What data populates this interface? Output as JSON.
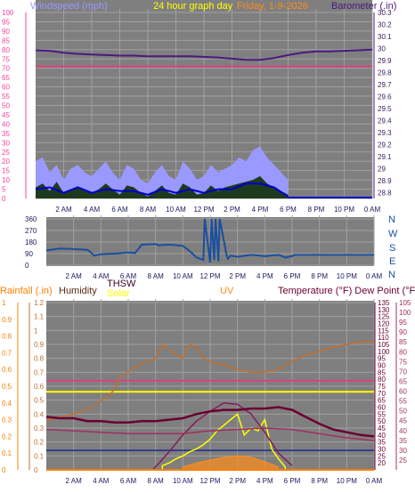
{
  "header": {
    "windspeed_label": "Windspeed (mph)",
    "graph_day_label": "24 hour graph day",
    "date_label": "Friday, 1-9-2026",
    "barometer_label": "Barometer (.in)"
  },
  "mid": {
    "compass": [
      "N",
      "W",
      "S",
      "E",
      "N"
    ]
  },
  "bottom_header": {
    "rainfall_label": "Rainfall (.in)",
    "humidity_label": "Humidity",
    "thsw_label": "THSW",
    "solar_label": "Solar",
    "uv_label": "UV",
    "temperature_label": "Temperature (°F) Dew Point (°F)"
  },
  "colors": {
    "panel_bg": "#7f7f7f",
    "grid": "#a0a0a0",
    "windspeed": "#9999ff",
    "wind_avg": "#0000cc",
    "gust_fill": "#1e3a1e",
    "barometer": "#4b1a7f",
    "pink_line": "#e0407e",
    "direction": "#1a4f9f",
    "humidity": "#c07030",
    "temperature": "#6a0030",
    "dewpoint": "#a03060",
    "thsw": "#7f1f5f",
    "solar": "#ffff00",
    "uv": "#ff8c1a",
    "rain": "#ff7f00"
  },
  "chart_data": [
    {
      "type": "line",
      "title": "24 hour graph day",
      "x_ticks": [
        "2 AM",
        "4 AM",
        "6 AM",
        "8 AM",
        "10 AM",
        "12 PM",
        "2 PM",
        "4 PM",
        "6 PM",
        "8 PM",
        "10 PM",
        "0 AM"
      ],
      "left_axis": {
        "label": "Windspeed (mph)",
        "range": [
          0,
          100
        ],
        "ticks": [
          "100",
          "95",
          "90",
          "85",
          "80",
          "75",
          "70",
          "65",
          "60",
          "55",
          "50",
          "45",
          "40",
          "35",
          "30",
          "25",
          "20",
          "15",
          "10",
          "5",
          "0"
        ]
      },
      "right_axis": {
        "label": "Barometer (.in)",
        "range": [
          28.75,
          30.3
        ],
        "ticks": [
          "30.3",
          "30.2",
          "30.1",
          "30",
          "29.9",
          "29.8",
          "29.7",
          "29.6",
          "29.5",
          "29.4",
          "29.3",
          "29.2",
          "29.1",
          "29",
          "28.9",
          "28.8"
        ]
      },
      "series": [
        {
          "name": "Barometer",
          "axis": "right",
          "x": [
            0,
            1,
            2,
            3,
            4,
            5,
            6,
            7,
            8,
            9,
            10,
            11,
            12,
            13,
            14,
            15,
            16,
            17,
            18,
            19,
            20,
            21,
            22,
            23,
            24
          ],
          "y": [
            29.985,
            29.98,
            29.965,
            29.955,
            29.95,
            29.945,
            29.94,
            29.94,
            29.935,
            29.935,
            29.935,
            29.935,
            29.93,
            29.925,
            29.915,
            29.905,
            29.905,
            29.92,
            29.945,
            29.965,
            29.975,
            29.975,
            29.98,
            29.985,
            29.99
          ]
        },
        {
          "name": "Windspeed",
          "axis": "left",
          "x": [
            0,
            0.5,
            1,
            1.5,
            2,
            2.5,
            3,
            3.5,
            4,
            4.5,
            5,
            5.5,
            6,
            6.5,
            7,
            7.5,
            8,
            8.5,
            9,
            9.5,
            10,
            10.5,
            11,
            11.5,
            12,
            12.5,
            13,
            13.5,
            14,
            14.5,
            15,
            15.5,
            16,
            16.5,
            17,
            17.5,
            18
          ],
          "y": [
            20,
            22,
            14,
            18,
            10,
            16,
            18,
            14,
            12,
            16,
            20,
            14,
            10,
            18,
            16,
            10,
            8,
            14,
            18,
            12,
            10,
            20,
            16,
            10,
            12,
            18,
            14,
            16,
            18,
            22,
            20,
            26,
            28,
            22,
            18,
            14,
            10
          ]
        },
        {
          "name": "Wind gust",
          "axis": "left",
          "x": [
            0,
            0.5,
            1,
            1.5,
            2,
            2.5,
            3,
            3.5,
            4,
            4.5,
            5,
            5.5,
            6,
            6.5,
            7,
            7.5,
            8,
            8.5,
            9,
            9.5,
            10,
            10.5,
            11,
            11.5,
            12,
            12.5,
            13,
            13.5,
            14,
            14.5,
            15,
            15.5,
            16,
            16.5,
            17,
            17.5,
            18
          ],
          "y": [
            6,
            8,
            4,
            9,
            3,
            5,
            6,
            4,
            3,
            5,
            8,
            5,
            2,
            7,
            6,
            3,
            1,
            4,
            7,
            3,
            2,
            8,
            6,
            2,
            3,
            7,
            4,
            6,
            7,
            8,
            9,
            10,
            12,
            8,
            6,
            4,
            2
          ]
        },
        {
          "name": "Wind average",
          "axis": "left",
          "x": [
            0,
            1,
            2,
            3,
            4,
            5,
            6,
            7,
            8,
            9,
            10,
            11,
            12,
            13,
            14,
            15,
            16,
            17,
            18
          ],
          "y": [
            5,
            6,
            3,
            6,
            3,
            5,
            4,
            4,
            2,
            5,
            3,
            5,
            3,
            5,
            5,
            8,
            8,
            6,
            1
          ]
        }
      ],
      "reference_line": {
        "axis": "left",
        "value": 71
      }
    },
    {
      "type": "line",
      "title": "",
      "x_ticks": [
        "2 AM",
        "4 AM",
        "6 AM",
        "8 AM",
        "10 AM",
        "12 PM",
        "2 PM",
        "4 PM",
        "6 PM",
        "8 PM",
        "10 PM",
        "0 AM"
      ],
      "left_axis": {
        "range": [
          0,
          360
        ],
        "ticks": [
          "360",
          "270",
          "180",
          "90",
          "0"
        ]
      },
      "right_axis": {
        "ticks": [
          "N",
          "W",
          "S",
          "E",
          "N"
        ]
      },
      "series": [
        {
          "name": "Wind direction",
          "x": [
            0,
            1,
            2,
            3,
            3.2,
            3.5,
            4,
            5,
            6,
            6.5,
            7,
            8,
            8.2,
            9,
            10,
            10.5,
            11,
            11.5,
            11.6,
            12,
            12.1,
            12.3,
            12.4,
            12.6,
            12.7,
            13.2,
            13.3,
            13.5,
            14,
            15,
            16,
            17,
            17.5,
            18,
            18.2,
            24
          ],
          "y": [
            115,
            130,
            125,
            120,
            105,
            75,
            85,
            90,
            100,
            95,
            160,
            165,
            155,
            160,
            150,
            110,
            60,
            40,
            360,
            20,
            360,
            40,
            360,
            30,
            360,
            80,
            50,
            75,
            65,
            80,
            70,
            80,
            60,
            70,
            80,
            80
          ]
        }
      ]
    },
    {
      "type": "line",
      "title": "",
      "x_ticks": [
        "2 AM",
        "4 AM",
        "6 AM",
        "8 AM",
        "10 AM",
        "12 PM",
        "2 PM",
        "4 PM",
        "6 PM",
        "8 PM",
        "10 PM",
        "0 AM"
      ],
      "rain_axis": {
        "label": "Rainfall (.in)",
        "range": [
          0,
          1
        ],
        "ticks": [
          "1",
          "0.9",
          "0.8",
          "0.7",
          "0.6",
          "0.5",
          "0.4",
          "0.3",
          "0.2",
          "0.1",
          "0"
        ]
      },
      "uv_axis": {
        "label": "UV",
        "range": [
          0,
          12
        ],
        "ticks": [
          "12",
          "11",
          "10",
          "9",
          "8",
          "7",
          "6",
          "5",
          "4",
          "3",
          "2",
          "1",
          "0"
        ]
      },
      "humidity_axis": {
        "label": "Humidity",
        "range": [
          0,
          1.2
        ],
        "ticks": [
          "1.2",
          "1.1",
          "1",
          "0.9",
          "0.8",
          "0.7",
          "0.6",
          "0.5",
          "0.4",
          "0.3",
          "0.2",
          "0.1",
          "0"
        ]
      },
      "temperature_axis": {
        "label": "Temperature (°F)",
        "range": [
          15,
          135
        ],
        "ticks": [
          "135",
          "130",
          "125",
          "120",
          "115",
          "110",
          "105",
          "100",
          "95",
          "90",
          "85",
          "80",
          "75",
          "70",
          "65",
          "60",
          "55",
          "50",
          "45",
          "40",
          "35",
          "30",
          "25",
          "20"
        ]
      },
      "dewpoint_axis": {
        "label": "Dew Point (°F)",
        "range": [
          20,
          105
        ],
        "ticks": [
          "105",
          "100",
          "95",
          "90",
          "85",
          "80",
          "75",
          "70",
          "65",
          "60",
          "55",
          "50",
          "45",
          "40",
          "35",
          "30",
          "25"
        ]
      },
      "series": [
        {
          "name": "Humidity",
          "axis": "humidity",
          "x": [
            0,
            1,
            2,
            3,
            3.5,
            4,
            4.5,
            5,
            5.5,
            6,
            6.5,
            7,
            7.5,
            8,
            8.5,
            9,
            9.5,
            10,
            10.5,
            11,
            11.5,
            12,
            13,
            14,
            15,
            16,
            17,
            18,
            19,
            20,
            21,
            22,
            23,
            24
          ],
          "y": [
            0.35,
            0.38,
            0.4,
            0.44,
            0.46,
            0.5,
            0.52,
            0.58,
            0.68,
            0.7,
            0.74,
            0.76,
            0.78,
            0.8,
            0.9,
            0.86,
            0.83,
            0.8,
            0.9,
            0.88,
            0.8,
            0.78,
            0.75,
            0.72,
            0.7,
            0.7,
            0.72,
            0.78,
            0.82,
            0.85,
            0.88,
            0.9,
            0.92,
            0.92
          ]
        },
        {
          "name": "Temperature",
          "axis": "temperature",
          "x": [
            0,
            1,
            2,
            3,
            4,
            5,
            6,
            7,
            8,
            9,
            10,
            11,
            12,
            13,
            14,
            15,
            16,
            17,
            18,
            19,
            20,
            21,
            22,
            23,
            24
          ],
          "y": [
            53,
            52,
            52,
            50,
            50,
            49,
            49,
            50,
            50,
            51,
            52,
            55,
            57,
            58,
            58,
            59,
            59,
            60,
            58,
            53,
            48,
            44,
            42,
            40,
            39
          ]
        },
        {
          "name": "Dew Point",
          "axis": "temperature",
          "x": [
            0,
            2,
            4,
            6,
            8,
            10,
            12,
            14,
            16,
            18,
            20,
            22,
            24
          ],
          "y": [
            44,
            43,
            42,
            41,
            41,
            41,
            43,
            44,
            45,
            44,
            41,
            38,
            36
          ]
        },
        {
          "name": "THSW",
          "axis": "temperature",
          "x": [
            7.8,
            9,
            10,
            11,
            12,
            13,
            14,
            15,
            16,
            17,
            18
          ],
          "y": [
            15,
            28,
            40,
            50,
            57,
            63,
            62,
            55,
            42,
            27,
            18
          ]
        },
        {
          "name": "Solar",
          "axis": "uv",
          "x": [
            8.5,
            9,
            9.5,
            10,
            10.5,
            11,
            11.5,
            12,
            12.5,
            13,
            13.5,
            14,
            14.5,
            15,
            15.5,
            16,
            16.5,
            17,
            17.5
          ],
          "y": [
            0.3,
            0.5,
            0.8,
            1.0,
            1.3,
            1.5,
            1.8,
            2.2,
            2.8,
            3.2,
            3.6,
            4.0,
            2.5,
            3.0,
            2.8,
            3.6,
            1.5,
            0.8,
            0.2
          ]
        },
        {
          "name": "UV",
          "axis": "uv",
          "x": [
            10,
            11,
            12,
            13,
            14,
            15,
            16,
            17
          ],
          "y": [
            0.2,
            0.5,
            0.7,
            0.9,
            1.0,
            0.9,
            0.6,
            0.2
          ]
        },
        {
          "name": "Rainfall",
          "axis": "rain",
          "x": [
            0,
            24
          ],
          "y": [
            0,
            0
          ]
        }
      ],
      "reference_lines": [
        {
          "axis": "temperature",
          "value": 79
        },
        {
          "axis": "uv",
          "value": 5.6
        },
        {
          "axis": "uv",
          "value": 1.4
        }
      ]
    }
  ]
}
